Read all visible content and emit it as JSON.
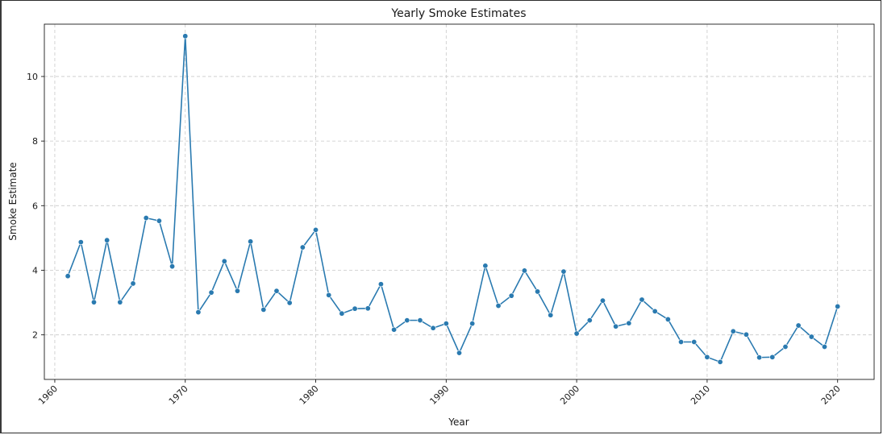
{
  "chart_data": {
    "type": "line",
    "title": "Yearly Smoke Estimates",
    "xlabel": "Year",
    "ylabel": "Smoke Estimate",
    "xlim": [
      1959.2,
      2022.8
    ],
    "ylim": [
      0.62,
      11.62
    ],
    "xticks": [
      1960,
      1970,
      1980,
      1990,
      2000,
      2010,
      2020
    ],
    "yticks": [
      2,
      4,
      6,
      8,
      10
    ],
    "grid": true,
    "line_color": "#2a7ab0",
    "series": [
      {
        "x": [
          1961,
          1962,
          1963,
          1964,
          1965,
          1966,
          1967,
          1968,
          1969,
          1970,
          1971,
          1972,
          1973,
          1974,
          1975,
          1976,
          1977,
          1978,
          1979,
          1980,
          1981,
          1982,
          1983,
          1984,
          1985,
          1986,
          1987,
          1988,
          1989,
          1990,
          1991,
          1992,
          1993,
          1994,
          1995,
          1996,
          1997,
          1998,
          1999,
          2000,
          2001,
          2002,
          2003,
          2004,
          2005,
          2006,
          2007,
          2008,
          2009,
          2010,
          2011,
          2012,
          2013,
          2014,
          2015,
          2016,
          2017,
          2018,
          2019,
          2020
        ],
        "values": [
          3.82,
          4.87,
          3.01,
          4.93,
          3.01,
          3.59,
          5.62,
          5.53,
          4.12,
          11.25,
          2.7,
          3.31,
          4.28,
          3.36,
          4.89,
          2.78,
          3.36,
          2.99,
          4.71,
          5.25,
          3.23,
          2.66,
          2.81,
          2.82,
          3.57,
          2.16,
          2.45,
          2.45,
          2.21,
          2.35,
          1.44,
          2.35,
          4.14,
          2.9,
          3.21,
          3.99,
          3.34,
          2.61,
          3.96,
          2.04,
          2.45,
          3.06,
          2.26,
          2.36,
          3.09,
          2.73,
          2.48,
          1.78,
          1.78,
          1.31,
          1.16,
          2.11,
          2.01,
          1.3,
          1.31,
          1.63,
          2.29,
          1.94,
          1.63,
          2.88
        ]
      }
    ]
  }
}
